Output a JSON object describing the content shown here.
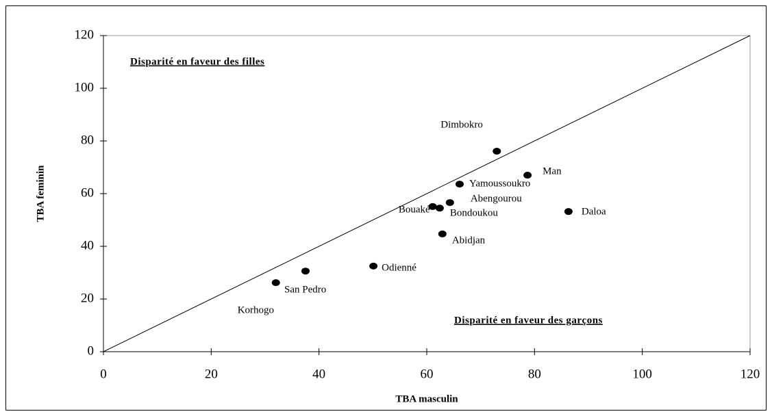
{
  "chart_data": {
    "type": "scatter",
    "x_label": "TBA masculin",
    "y_label": "TBA feminin",
    "annotations": [
      "Disparité en faveur des filles",
      "Disparité en faveur des garçons"
    ],
    "labels": [
      "Dimbokro",
      "Man",
      "Yamoussoukro",
      "Abengourou",
      "Bouaké",
      "Bondoukou",
      "Daloa",
      "Abidjan",
      "Odienné",
      "San Pedro",
      "Korhogo"
    ],
    "x": [
      73.0,
      78.7,
      66.1,
      64.3,
      61.1,
      62.4,
      86.3,
      62.9,
      50.1,
      37.5,
      32.0
    ],
    "values": [
      76.1,
      67.0,
      63.6,
      56.6,
      55.1,
      54.5,
      53.2,
      44.7,
      32.5,
      30.6,
      26.2
    ],
    "color": "#000000",
    "xlim": [
      0,
      120
    ],
    "xticks": [
      0,
      20,
      40,
      60,
      80,
      100,
      120
    ],
    "ylim": [
      0,
      120
    ],
    "yticks": [
      0,
      20,
      40,
      60,
      80,
      100,
      120
    ]
  }
}
